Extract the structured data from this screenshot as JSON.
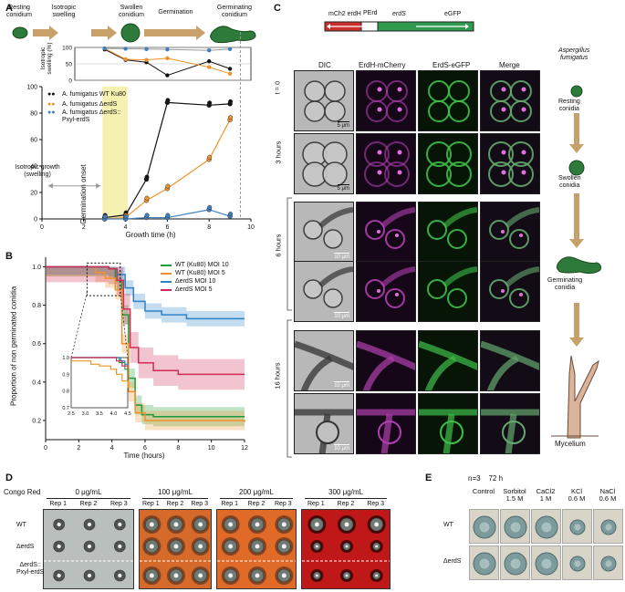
{
  "panelA": {
    "label": "A",
    "stages": [
      "Resting\nconidium",
      "Isotropic\nswelling",
      "Swollen\nconidium",
      "Germination",
      "Germinating\nconidium"
    ],
    "inset_ylabel": "Isotropic\nswelling (%)",
    "legend": [
      "A. fumigatus WT Ku80",
      "A. fumigatus ΔerdS",
      "A. fumigatus ΔerdS::\nPxyl-erdS"
    ],
    "annot_isotropic": "Isotropic growth\n(swelling)",
    "annot_germ": "Germination onset",
    "xlabel": "Growth time (h)"
  },
  "panelB": {
    "label": "B",
    "ylabel": "Proportion of non germinated conidia",
    "xlabel": "Time (hours)"
  },
  "panelC": {
    "label": "C",
    "construct": {
      "left": "mCh2 erdH",
      "mid": "PErd",
      "right": "erdS",
      "tag": "eGFP"
    },
    "columns": [
      "DIC",
      "ErdH-mCherry",
      "ErdS-eGFP",
      "Merge"
    ],
    "species": "Aspergillus\nfumigatus",
    "rows": [
      "t = 0",
      "3 hours",
      "6 hours",
      "16 hours"
    ],
    "scales": [
      "5 μm",
      "5 μm",
      "10 μm",
      "10 μm",
      "10 μm",
      "10 μm"
    ],
    "stages": [
      "Resting\nconidia",
      "Swollen\nconidia",
      "Germinating\nconidia",
      "Mycelium"
    ]
  },
  "panelD": {
    "label": "D",
    "title": "Congo Red",
    "concentrations": [
      "0 μg/mL",
      "100 μg/mL",
      "200 μg/mL",
      "300 μg/mL"
    ],
    "reps": [
      "Rep 1",
      "Rep 2",
      "Rep 3"
    ],
    "strains": [
      "WT",
      "ΔerdS",
      "ΔerdS::\nPxyl-erdS"
    ]
  },
  "panelE": {
    "label": "E",
    "header": "n=3    72 h",
    "conditions": [
      "Control",
      "Sorbitol\n1.5 M",
      "CaCl2\n1 M",
      "KCl\n0.6 M",
      "NaCl\n0.6 M"
    ],
    "strains": [
      "WT",
      "ΔerdS"
    ]
  },
  "colors": {
    "wt": "#111111",
    "erdS": "#f0922b",
    "comp": "#3f7fbf",
    "wt_b": "#1f9a3b",
    "wt5_b": "#f0922b",
    "erd10_b": "#2b83c6",
    "erd5_b": "#d12a53",
    "arrow": "#c8a06a",
    "germ_band": "#f6f1b0"
  },
  "chart_data": [
    {
      "type": "line",
      "title": "",
      "xlabel": "Growth time (h)",
      "ylabel": "",
      "xlim": [
        0,
        10
      ],
      "ylim": [
        0,
        100
      ],
      "xticks": [
        0,
        2,
        4,
        6,
        8,
        10
      ],
      "yticks": [
        0,
        20,
        40,
        60,
        80,
        100
      ],
      "series": [
        {
          "name": "A. fumigatus WT Ku80",
          "x": [
            3,
            4,
            5,
            6,
            8,
            9
          ],
          "y": [
            1,
            3,
            30,
            88,
            86,
            87
          ]
        },
        {
          "name": "A. fumigatus ΔerdS",
          "x": [
            3,
            4,
            5,
            6,
            8,
            9
          ],
          "y": [
            0,
            1,
            14,
            23,
            45,
            75
          ]
        },
        {
          "name": "A. fumigatus ΔerdS::Pxyl-erdS",
          "x": [
            3,
            4,
            5,
            6,
            8,
            9
          ],
          "y": [
            0,
            0,
            1,
            1,
            7,
            2
          ]
        }
      ]
    },
    {
      "type": "line",
      "title": "",
      "xlabel": "",
      "ylabel": "Isotropic swelling (%)",
      "ylim": [
        0,
        100
      ],
      "yticks": [
        0,
        50,
        100
      ],
      "series": [
        {
          "name": "WT",
          "x": [
            3,
            4,
            5,
            6,
            8,
            9
          ],
          "y": [
            94,
            62,
            55,
            15,
            58,
            35
          ]
        },
        {
          "name": "erdS",
          "x": [
            3,
            4,
            5,
            6,
            8,
            9
          ],
          "y": [
            97,
            64,
            62,
            67,
            40,
            20
          ]
        },
        {
          "name": "comp",
          "x": [
            3,
            4,
            5,
            6,
            8,
            9
          ],
          "y": [
            97,
            96,
            95,
            94,
            91,
            95
          ]
        }
      ]
    },
    {
      "type": "line",
      "title": "",
      "xlabel": "Time (hours)",
      "ylabel": "Proportion of non germinated conidia",
      "xlim": [
        0,
        12
      ],
      "ylim": [
        0.1,
        1.05
      ],
      "xticks": [
        0,
        2,
        4,
        6,
        8,
        10,
        12
      ],
      "yticks": [
        0.2,
        0.4,
        0.6,
        0.8,
        1.0
      ],
      "series": [
        {
          "name": "WT (Ku80) MOI 10",
          "x": [
            0,
            3.8,
            4.2,
            4.6,
            5.0,
            5.4,
            5.8,
            6.5,
            12
          ],
          "y": [
            1,
            0.99,
            0.93,
            0.75,
            0.42,
            0.28,
            0.23,
            0.22,
            0.22
          ]
        },
        {
          "name": "WT (Ku80) MOI 5",
          "x": [
            0,
            3.0,
            3.6,
            4.2,
            4.6,
            5.0,
            5.4,
            6.0,
            12
          ],
          "y": [
            1,
            0.97,
            0.94,
            0.88,
            0.6,
            0.35,
            0.24,
            0.2,
            0.19
          ]
        },
        {
          "name": "ΔerdS MOI 10",
          "x": [
            0,
            3.8,
            4.3,
            4.8,
            5.3,
            6.0,
            7.0,
            8.5,
            12
          ],
          "y": [
            1,
            0.99,
            0.96,
            0.89,
            0.82,
            0.77,
            0.75,
            0.73,
            0.73
          ]
        },
        {
          "name": "ΔerdS MOI 5",
          "x": [
            0,
            3.8,
            4.3,
            4.7,
            5.1,
            5.6,
            6.5,
            8.0,
            12
          ],
          "y": [
            1,
            0.99,
            0.93,
            0.78,
            0.58,
            0.5,
            0.46,
            0.44,
            0.44
          ]
        }
      ],
      "inset": {
        "xlim": [
          2.5,
          4.5
        ],
        "ylim": [
          0.7,
          1.0
        ],
        "xticks": [
          2.5,
          3.0,
          3.5,
          4.0,
          4.5
        ],
        "yticks": [
          0.7,
          0.8,
          0.9,
          1.0
        ]
      }
    }
  ]
}
